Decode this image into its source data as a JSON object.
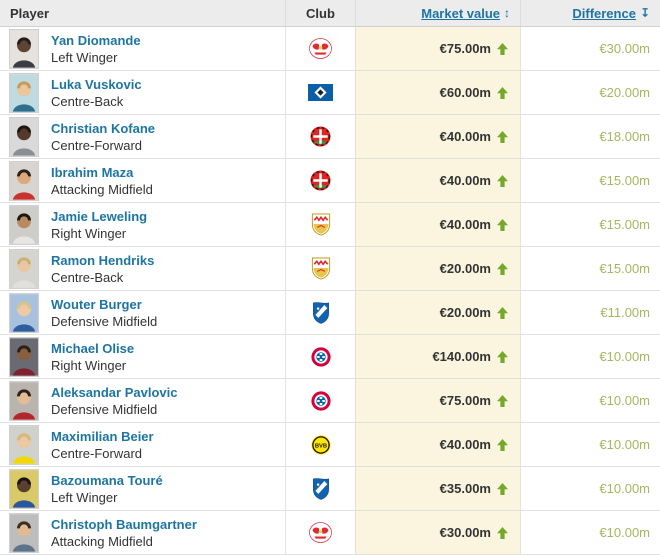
{
  "table": {
    "columns": {
      "player": "Player",
      "club": "Club",
      "market_value": "Market value",
      "difference": "Difference"
    },
    "sort_icons": {
      "market_value": "↕",
      "difference": "↧"
    },
    "colors": {
      "header_bg": "#ececec",
      "link_blue": "#1d75a3",
      "market_value_cell_bg": "#fbf5e0",
      "arrow_green": "#74a829",
      "difference_green": "#a3b85f"
    },
    "rows": [
      {
        "name": "Yan Diomande",
        "position": "Left Winger",
        "club": "RB Leipzig",
        "club_id": "rb-leipzig",
        "market_value": "€75.00m",
        "difference": "€30.00m",
        "avatar": {
          "bg": "#e6e3de",
          "skin": "#5f4433",
          "hair": "#241d18",
          "shirt": "#3c3c44"
        }
      },
      {
        "name": "Luka Vuskovic",
        "position": "Centre-Back",
        "club": "Hamburger SV",
        "club_id": "hamburger-sv",
        "market_value": "€60.00m",
        "difference": "€20.00m",
        "avatar": {
          "bg": "#bfdbe0",
          "skin": "#eac69f",
          "hair": "#c79a5d",
          "shirt": "#2e6f8e"
        }
      },
      {
        "name": "Christian Kofane",
        "position": "Centre-Forward",
        "club": "Bayer 04 Leverkusen",
        "club_id": "bayer-leverkusen",
        "market_value": "€40.00m",
        "difference": "€18.00m",
        "avatar": {
          "bg": "#d9d9d9",
          "skin": "#553a2b",
          "hair": "#1e160f",
          "shirt": "#8a8f94"
        }
      },
      {
        "name": "Ibrahim Maza",
        "position": "Attacking Midfield",
        "club": "Bayer 04 Leverkusen",
        "club_id": "bayer-leverkusen",
        "market_value": "€40.00m",
        "difference": "€15.00m",
        "avatar": {
          "bg": "#d8d5d0",
          "skin": "#dba97c",
          "hair": "#2a211a",
          "shirt": "#c8332e"
        }
      },
      {
        "name": "Jamie Leweling",
        "position": "Right Winger",
        "club": "VfB Stuttgart",
        "club_id": "vfb-stuttgart",
        "market_value": "€40.00m",
        "difference": "€15.00m",
        "avatar": {
          "bg": "#cfcdc9",
          "skin": "#b98a5f",
          "hair": "#1f1812",
          "shirt": "#e8e6e2"
        }
      },
      {
        "name": "Ramon Hendriks",
        "position": "Centre-Back",
        "club": "VfB Stuttgart",
        "club_id": "vfb-stuttgart",
        "market_value": "€20.00m",
        "difference": "€15.00m",
        "avatar": {
          "bg": "#d6d4d0",
          "skin": "#e8c8a4",
          "hair": "#cdb071",
          "shirt": "#e2e0dc"
        }
      },
      {
        "name": "Wouter Burger",
        "position": "Defensive Midfield",
        "club": "TSG 1899 Hoffenheim",
        "club_id": "hoffenheim",
        "market_value": "€20.00m",
        "difference": "€11.00m",
        "avatar": {
          "bg": "#a8c2dd",
          "skin": "#eccaa6",
          "hair": "#d9c285",
          "shirt": "#2d5f9e"
        }
      },
      {
        "name": "Michael Olise",
        "position": "Right Winger",
        "club": "Bayern Munich",
        "club_id": "bayern-munich",
        "market_value": "€140.00m",
        "difference": "€10.00m",
        "avatar": {
          "bg": "#6a6a72",
          "skin": "#8a5f3f",
          "hair": "#2b2118",
          "shirt": "#7e2430"
        }
      },
      {
        "name": "Aleksandar Pavlovic",
        "position": "Defensive Midfield",
        "club": "Bayern Munich",
        "club_id": "bayern-munich",
        "market_value": "€75.00m",
        "difference": "€10.00m",
        "avatar": {
          "bg": "#b9b4ae",
          "skin": "#e3bd97",
          "hair": "#2c231b",
          "shirt": "#b3262c"
        }
      },
      {
        "name": "Maximilian Beier",
        "position": "Centre-Forward",
        "club": "Borussia Dortmund",
        "club_id": "borussia-dortmund",
        "market_value": "€40.00m",
        "difference": "€10.00m",
        "avatar": {
          "bg": "#cfd2cc",
          "skin": "#ecc9a4",
          "hair": "#d6b877",
          "shirt": "#f3d903"
        }
      },
      {
        "name": "Bazoumana Touré",
        "position": "Left Winger",
        "club": "TSG 1899 Hoffenheim",
        "club_id": "hoffenheim",
        "market_value": "€35.00m",
        "difference": "€10.00m",
        "avatar": {
          "bg": "#d9c967",
          "skin": "#57402e",
          "hair": "#191410",
          "shirt": "#2a56a0"
        }
      },
      {
        "name": "Christoph Baumgartner",
        "position": "Attacking Midfield",
        "club": "RB Leipzig",
        "club_id": "rb-leipzig",
        "market_value": "€30.00m",
        "difference": "€10.00m",
        "avatar": {
          "bg": "#bdbdbb",
          "skin": "#e0ba93",
          "hair": "#3a2d22",
          "shirt": "#5b748c"
        }
      }
    ]
  }
}
